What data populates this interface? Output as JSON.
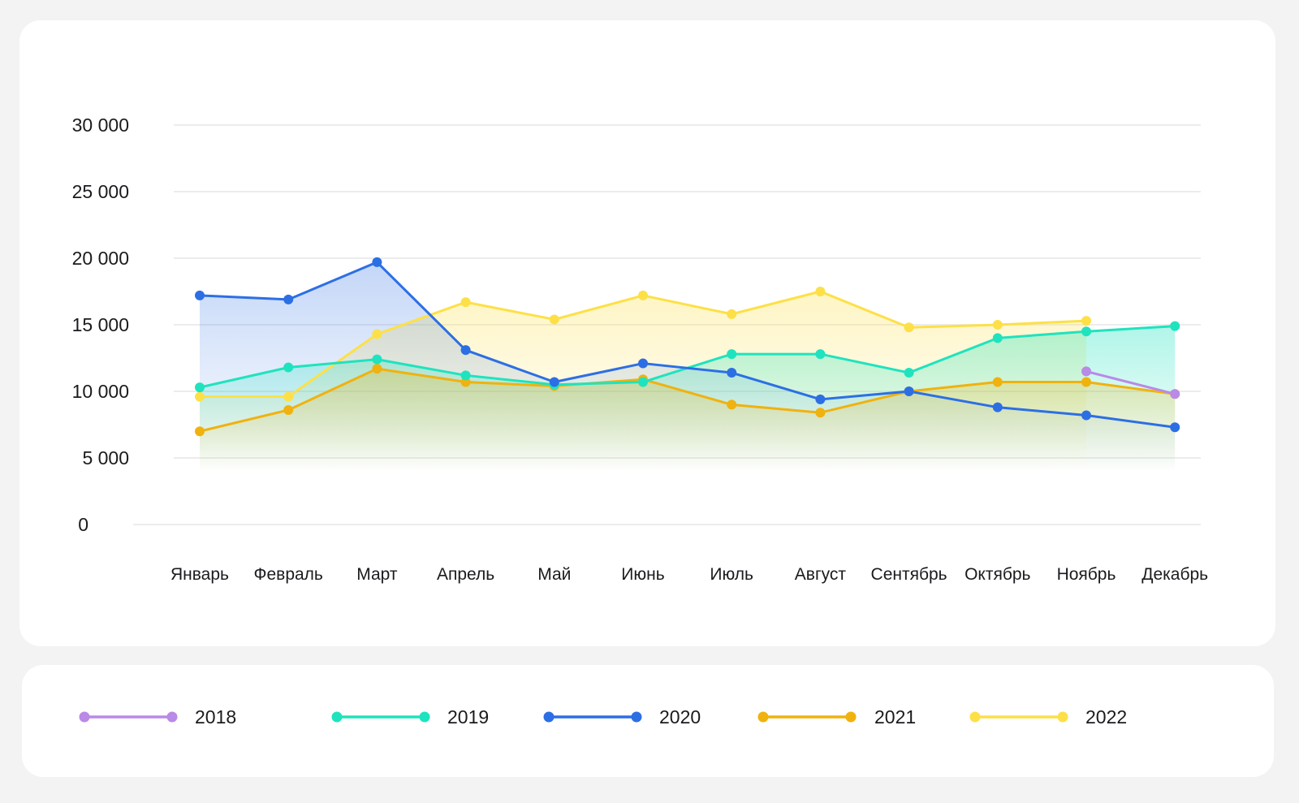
{
  "chart_data": {
    "type": "line",
    "categories": [
      "Январь",
      "Февраль",
      "Март",
      "Апрель",
      "Май",
      "Июнь",
      "Июль",
      "Август",
      "Сентябрь",
      "Октябрь",
      "Ноябрь",
      "Декабрь"
    ],
    "y_ticks": [
      "0",
      "5 000",
      "10 000",
      "15 000",
      "20 000",
      "25 000",
      "30 000"
    ],
    "ylim": [
      0,
      30000
    ],
    "grid": true,
    "legend_placement": "bottom",
    "series": [
      {
        "name": "2018",
        "color": "#b98ae6",
        "values": [
          null,
          null,
          null,
          null,
          null,
          null,
          null,
          null,
          null,
          null,
          11500,
          9800
        ]
      },
      {
        "name": "2019",
        "color": "#1fe3be",
        "values": [
          10300,
          11800,
          12400,
          11200,
          10500,
          10700,
          12800,
          12800,
          11400,
          14000,
          14500,
          14900
        ]
      },
      {
        "name": "2020",
        "color": "#2c6fe4",
        "values": [
          17200,
          16900,
          19700,
          13100,
          10700,
          12100,
          11400,
          9400,
          10000,
          8800,
          8200,
          7300
        ]
      },
      {
        "name": "2021",
        "color": "#f0b20e",
        "values": [
          7000,
          8600,
          11700,
          10700,
          10400,
          10900,
          9000,
          8400,
          10000,
          10700,
          10700,
          9800
        ]
      },
      {
        "name": "2022",
        "color": "#fde047",
        "values": [
          9600,
          9600,
          14300,
          16700,
          15400,
          17200,
          15800,
          17500,
          14800,
          15000,
          15300,
          null
        ]
      }
    ]
  },
  "legend": {
    "items": [
      "2018",
      "2019",
      "2020",
      "2021",
      "2022"
    ]
  }
}
